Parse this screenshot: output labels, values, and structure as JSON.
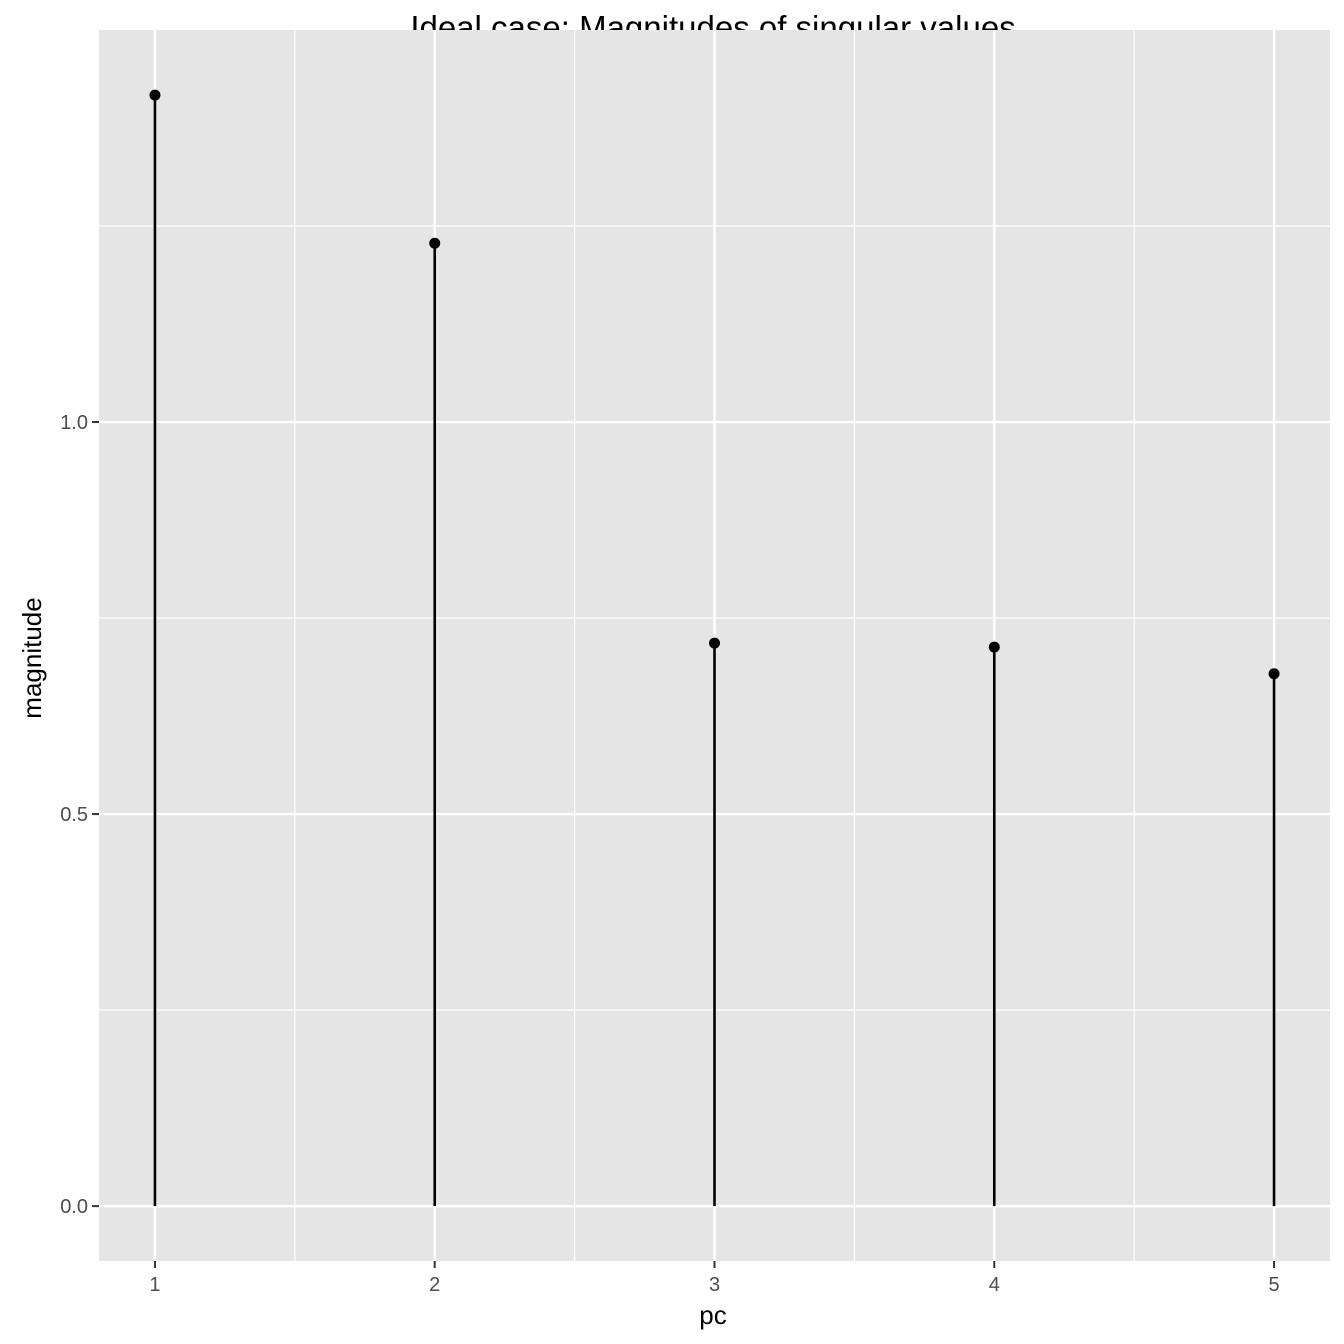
{
  "chart_data": {
    "type": "lollipop",
    "title": "Ideal case: Magnitudes of singular values",
    "xlabel": "pc",
    "ylabel": "magnitude",
    "x": [
      1,
      2,
      3,
      4,
      5
    ],
    "values": [
      1.417,
      1.228,
      0.718,
      0.713,
      0.679
    ],
    "xlim": [
      0.8,
      5.2
    ],
    "ylim": [
      -0.07,
      1.5
    ],
    "x_ticks": [
      1,
      2,
      3,
      4,
      5
    ],
    "x_tick_labels": [
      "1",
      "2",
      "3",
      "4",
      "5"
    ],
    "y_ticks": [
      0.0,
      0.5,
      1.0
    ],
    "y_tick_labels": [
      "0.0",
      "0.5",
      "1.0"
    ],
    "grid": true,
    "legend": "none",
    "colors": {
      "panel_background": "#e5e5e5",
      "grid": "#ffffff",
      "mark": "#000000",
      "tick_text": "#4d4d4d"
    }
  }
}
